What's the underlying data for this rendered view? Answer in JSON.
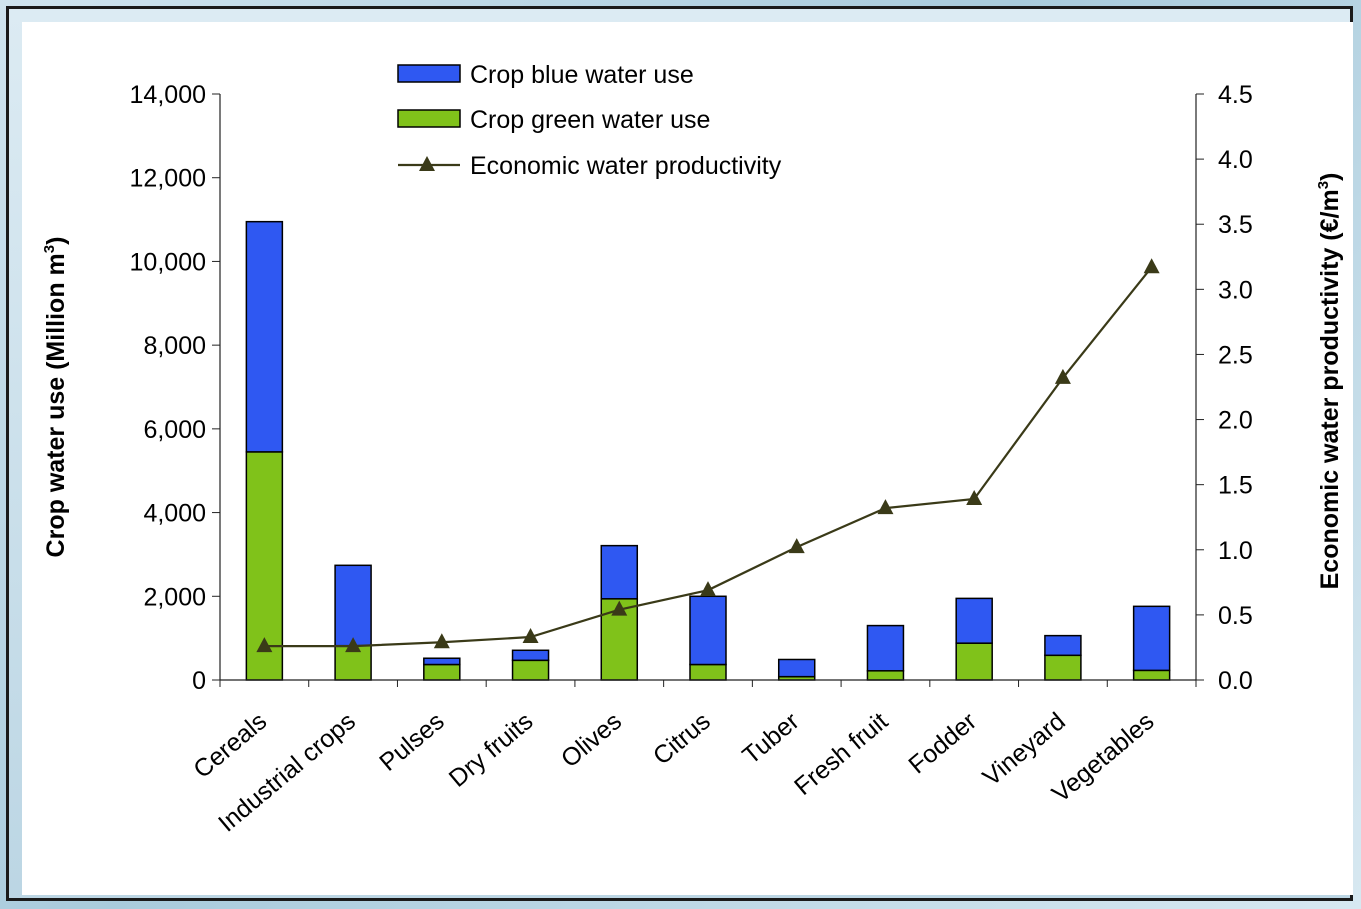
{
  "chart_data": {
    "type": "bar",
    "categories": [
      "Cereals",
      "Industrial crops",
      "Pulses",
      "Dry fruits",
      "Olives",
      "Citrus",
      "Tuber",
      "Fresh fruit",
      "Fodder",
      "Vineyard",
      "Vegetables"
    ],
    "series": [
      {
        "name": "Crop green water use",
        "kind": "bar",
        "stack": "water",
        "axis": "left",
        "color": "#80c21a",
        "values": [
          5450,
          820,
          370,
          470,
          1940,
          370,
          80,
          220,
          880,
          590,
          230
        ]
      },
      {
        "name": "Crop blue water use",
        "kind": "bar",
        "stack": "water",
        "axis": "left",
        "color": "#2f58f2",
        "values": [
          5500,
          1920,
          150,
          240,
          1270,
          1630,
          410,
          1080,
          1070,
          470,
          1530
        ]
      },
      {
        "name": "Economic water productivity",
        "kind": "line",
        "axis": "right",
        "color": "#3a3a18",
        "values": [
          0.26,
          0.26,
          0.29,
          0.33,
          0.54,
          0.69,
          1.02,
          1.32,
          1.39,
          2.32,
          3.17
        ]
      }
    ],
    "ylabel": "Crop water use (Million m",
    "ylabel_sup": "3",
    "ylabel_end": ")",
    "ylim": [
      0,
      14000
    ],
    "yticks": [
      "0",
      "2,000",
      "4,000",
      "6,000",
      "8,000",
      "10,000",
      "12,000",
      "14,000"
    ],
    "y2label": "Economic water productivity (€/m",
    "y2label_sup": "3",
    "y2label_end": ")",
    "y2lim": [
      0,
      4.5
    ],
    "y2ticks": [
      "0.0",
      "0.5",
      "1.0",
      "1.5",
      "2.0",
      "2.5",
      "3.0",
      "3.5",
      "4.0",
      "4.5"
    ],
    "legend": {
      "position": "top-center",
      "items": [
        "Crop blue water use",
        "Crop green water use",
        "Economic water productivity"
      ]
    },
    "grid": false
  }
}
